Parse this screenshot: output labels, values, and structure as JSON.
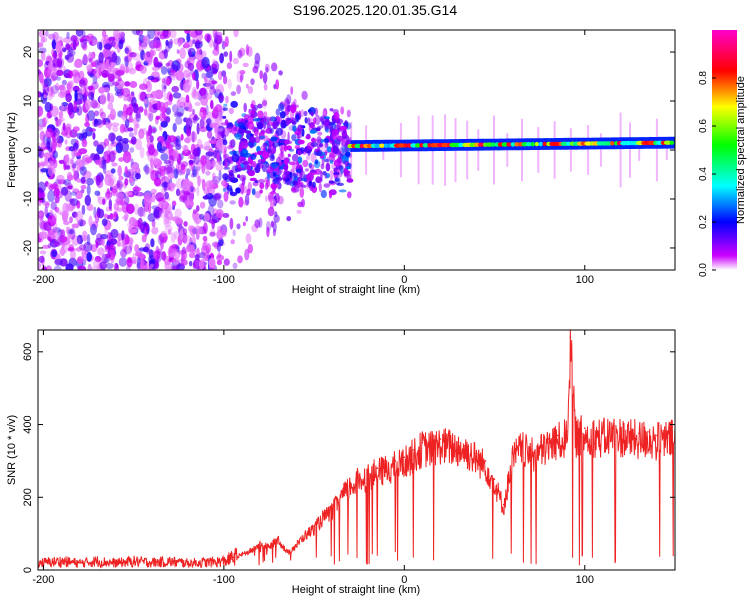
{
  "figure": {
    "title": "S196.2025.120.01.35.G14"
  },
  "chart_data": [
    {
      "type": "heatmap",
      "title": "S196.2025.120.01.35.G14",
      "xlabel": "Height of straight line (km)",
      "ylabel": "Frequency (Hz)",
      "xlim": [
        -203,
        150
      ],
      "ylim": [
        -24.5,
        24.5
      ],
      "xticks": [
        -200,
        -100,
        0,
        100
      ],
      "yticks": [
        -20,
        -10,
        0,
        10,
        20
      ],
      "colorbar": {
        "label": "Normalized spectral amplitude",
        "range": [
          0,
          1
        ],
        "ticks": [
          0.0,
          0.2,
          0.4,
          0.6,
          0.8
        ],
        "tick_labels": [
          "0.0",
          "0.2",
          "0.4",
          "0.6",
          "0.8"
        ],
        "colormap": [
          "#ffffff",
          "#cc00ff",
          "#0000ff",
          "#00ffff",
          "#00ff00",
          "#ffff00",
          "#ff0000",
          "#ff00cc"
        ]
      },
      "signal": {
        "noise_region_x": [
          -203,
          -100
        ],
        "transition_region_x": [
          -100,
          -30
        ],
        "tone_region_x": [
          -30,
          150
        ],
        "tone_frequency_hz": 0.8,
        "tone_frequency_end_hz": 1.5,
        "peak_amplitude": 0.9
      },
      "grid": false
    },
    {
      "type": "line",
      "xlabel": "Height of straight line (km)",
      "ylabel": "SNR (10 * v/v)",
      "xlim": [
        -203,
        150
      ],
      "ylim": [
        0,
        660
      ],
      "xticks": [
        -200,
        -100,
        0,
        100
      ],
      "yticks": [
        0,
        200,
        400,
        600
      ],
      "series": [
        {
          "color": "#ee2222",
          "x": [
            -203,
            -190,
            -180,
            -170,
            -160,
            -150,
            -140,
            -130,
            -120,
            -110,
            -100,
            -95,
            -90,
            -85,
            -80,
            -75,
            -70,
            -65,
            -60,
            -55,
            -50,
            -45,
            -40,
            -35,
            -30,
            -25,
            -20,
            -15,
            -10,
            -5,
            0,
            5,
            10,
            15,
            20,
            25,
            30,
            35,
            40,
            45,
            50,
            55,
            60,
            65,
            70,
            75,
            80,
            85,
            90,
            92,
            95,
            100,
            105,
            110,
            115,
            120,
            125,
            130,
            135,
            140,
            145,
            150
          ],
          "y": [
            20,
            25,
            20,
            25,
            20,
            25,
            22,
            24,
            20,
            22,
            25,
            35,
            45,
            55,
            75,
            65,
            90,
            50,
            70,
            100,
            120,
            150,
            170,
            210,
            240,
            260,
            270,
            280,
            290,
            300,
            310,
            330,
            350,
            350,
            360,
            355,
            350,
            340,
            320,
            300,
            250,
            180,
            320,
            350,
            330,
            340,
            360,
            370,
            380,
            640,
            385,
            390,
            385,
            380,
            390,
            385,
            380,
            375,
            380,
            370,
            375,
            380
          ]
        }
      ],
      "grid": false
    }
  ]
}
